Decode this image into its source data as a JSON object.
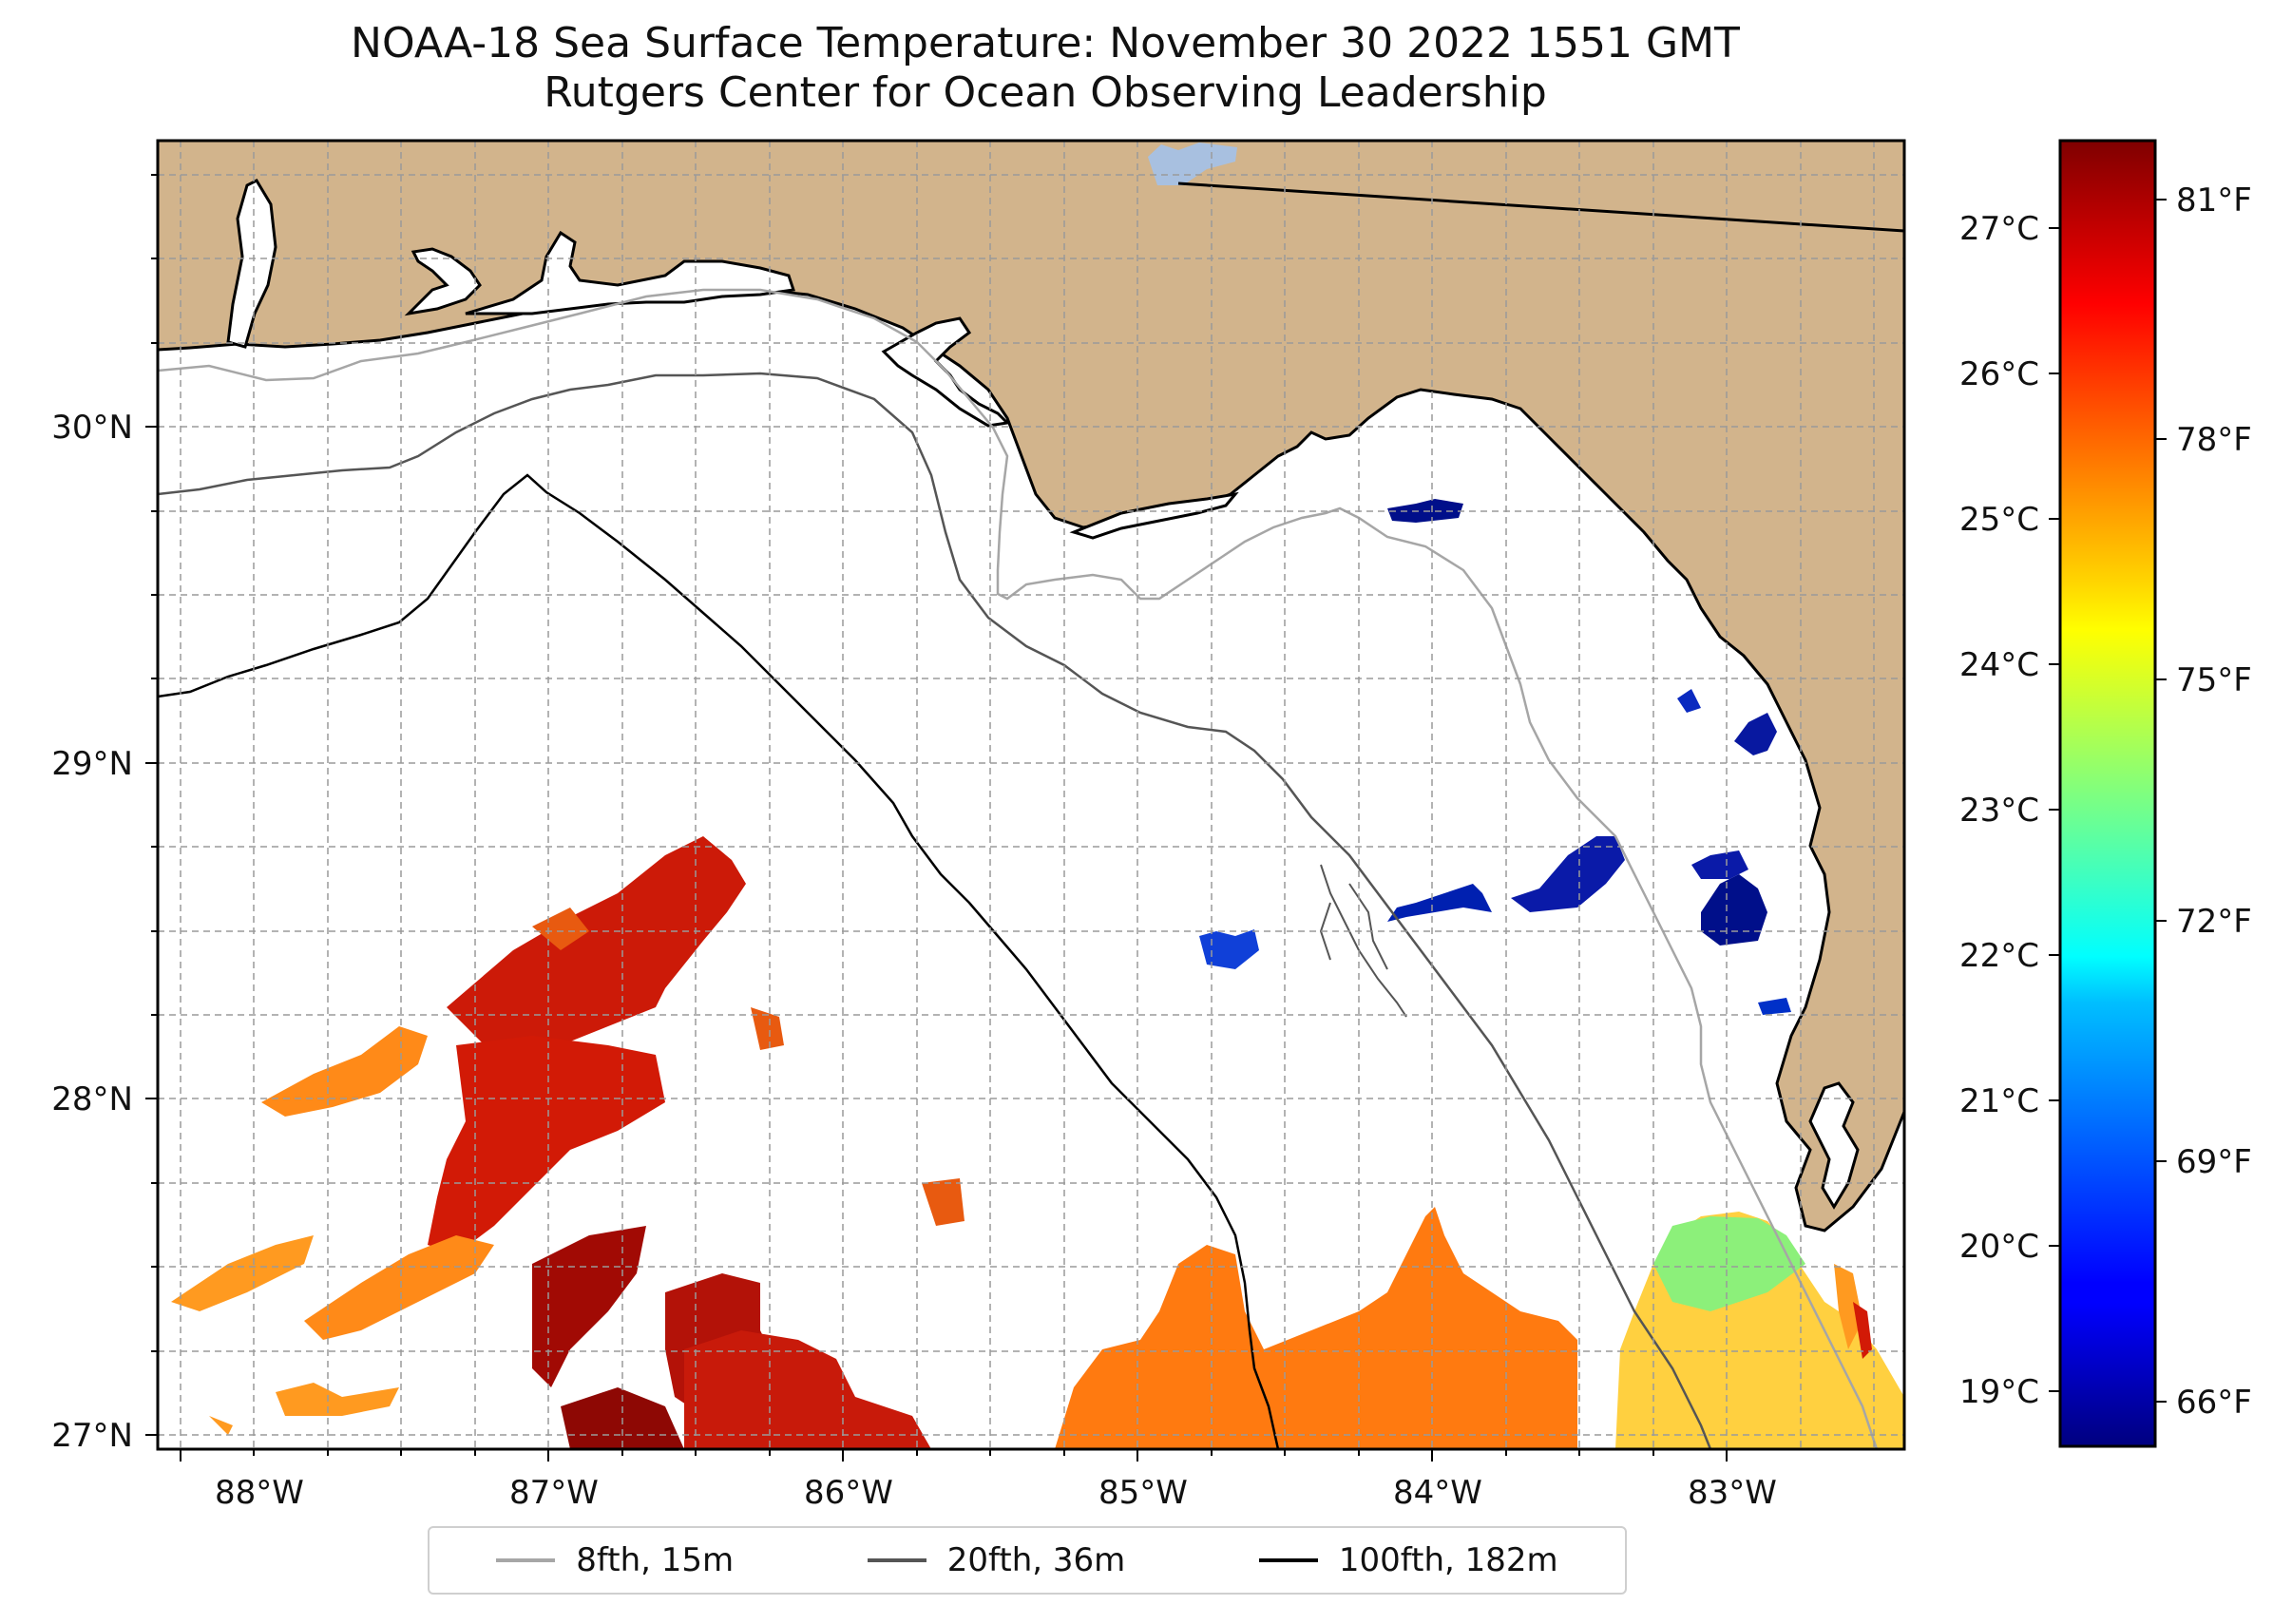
{
  "title": {
    "line1": "NOAA-18 Sea Surface Temperature: November 30 2022 1551 GMT",
    "line2": "Rutgers Center for Ocean Observing Leadership"
  },
  "axes": {
    "x_ticks": [
      "88°W",
      "87°W",
      "86°W",
      "85°W",
      "84°W",
      "83°W"
    ],
    "y_ticks": [
      "30°N",
      "29°N",
      "28°N",
      "27°N"
    ]
  },
  "colorbar": {
    "celsius_ticks": [
      "27°C",
      "26°C",
      "25°C",
      "24°C",
      "23°C",
      "22°C",
      "21°C",
      "20°C",
      "19°C"
    ],
    "fahrenheit_ticks": [
      "81°F",
      "78°F",
      "75°F",
      "72°F",
      "69°F",
      "66°F"
    ],
    "colormap": "jet"
  },
  "legend": [
    {
      "label": "8fth, 15m",
      "color": "#a6a6a6"
    },
    {
      "label": "20fth, 36m",
      "color": "#555555"
    },
    {
      "label": "100fth, 182m",
      "color": "#000000"
    }
  ],
  "colors": {
    "land": "#d2b48c",
    "ocean": "#ffffff",
    "lake": "#a8c0e0"
  }
}
